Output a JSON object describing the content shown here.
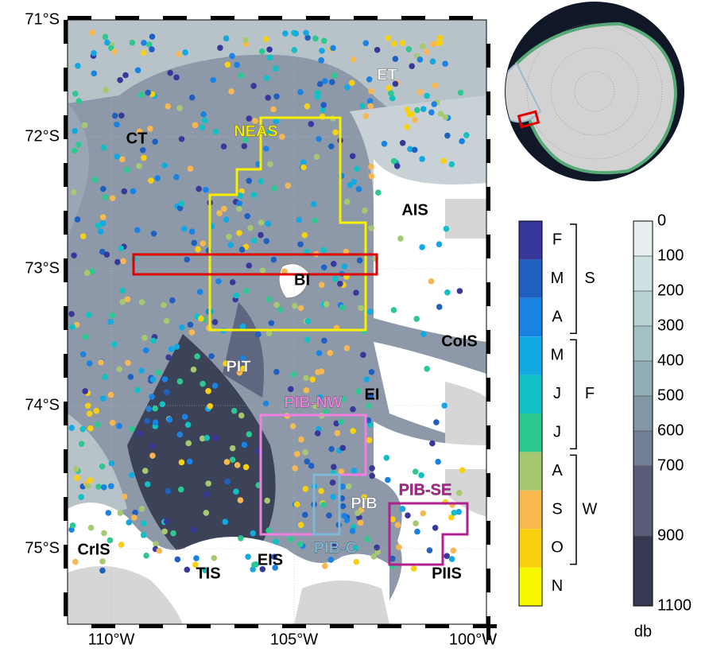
{
  "map": {
    "lat_labels": [
      "71°S",
      "72°S",
      "73°S",
      "74°S",
      "75°S"
    ],
    "lon_labels": [
      "110°W",
      "105°W",
      "100°W"
    ],
    "regions": [
      {
        "label": "CT",
        "color": "#000000"
      },
      {
        "label": "ET",
        "color": "#ffffff"
      },
      {
        "label": "NEAS",
        "color": "#f8f000"
      },
      {
        "label": "AIS",
        "color": "#000000"
      },
      {
        "label": "BI",
        "color": "#000000"
      },
      {
        "label": "CoIS",
        "color": "#000000"
      },
      {
        "label": "PIT",
        "color": "#ffffff"
      },
      {
        "label": "EI",
        "color": "#000000"
      },
      {
        "label": "PIB-NW",
        "color": "#f080e0"
      },
      {
        "label": "PIB",
        "color": "#ffffff"
      },
      {
        "label": "PIB-SE",
        "color": "#b02090"
      },
      {
        "label": "PIB-C",
        "color": "#80b8d8"
      },
      {
        "label": "CrIS",
        "color": "#000000"
      },
      {
        "label": "TIS",
        "color": "#000000"
      },
      {
        "label": "EIS",
        "color": "#000000"
      },
      {
        "label": "PIIS",
        "color": "#000000"
      }
    ]
  },
  "season_colorbar": {
    "months": [
      {
        "label": "F",
        "color": "#38389a"
      },
      {
        "label": "M",
        "color": "#1f5fc0"
      },
      {
        "label": "A",
        "color": "#1a82e2"
      },
      {
        "label": "M",
        "color": "#12a8e2"
      },
      {
        "label": "J",
        "color": "#10c0c4"
      },
      {
        "label": "J",
        "color": "#2cc890"
      },
      {
        "label": "A",
        "color": "#a6c870"
      },
      {
        "label": "S",
        "color": "#f8b850"
      },
      {
        "label": "O",
        "color": "#f8d010"
      },
      {
        "label": "N",
        "color": "#f8f800"
      }
    ],
    "seasons": [
      {
        "label": "S",
        "from": 0,
        "to": 2
      },
      {
        "label": "F",
        "from": 3,
        "to": 5
      },
      {
        "label": "W",
        "from": 6,
        "to": 8
      }
    ]
  },
  "depth_colorbar": {
    "ticks": [
      0,
      100,
      200,
      300,
      400,
      500,
      600,
      700,
      900,
      1100
    ],
    "lim": [
      0,
      1100
    ],
    "unit": "db"
  }
}
